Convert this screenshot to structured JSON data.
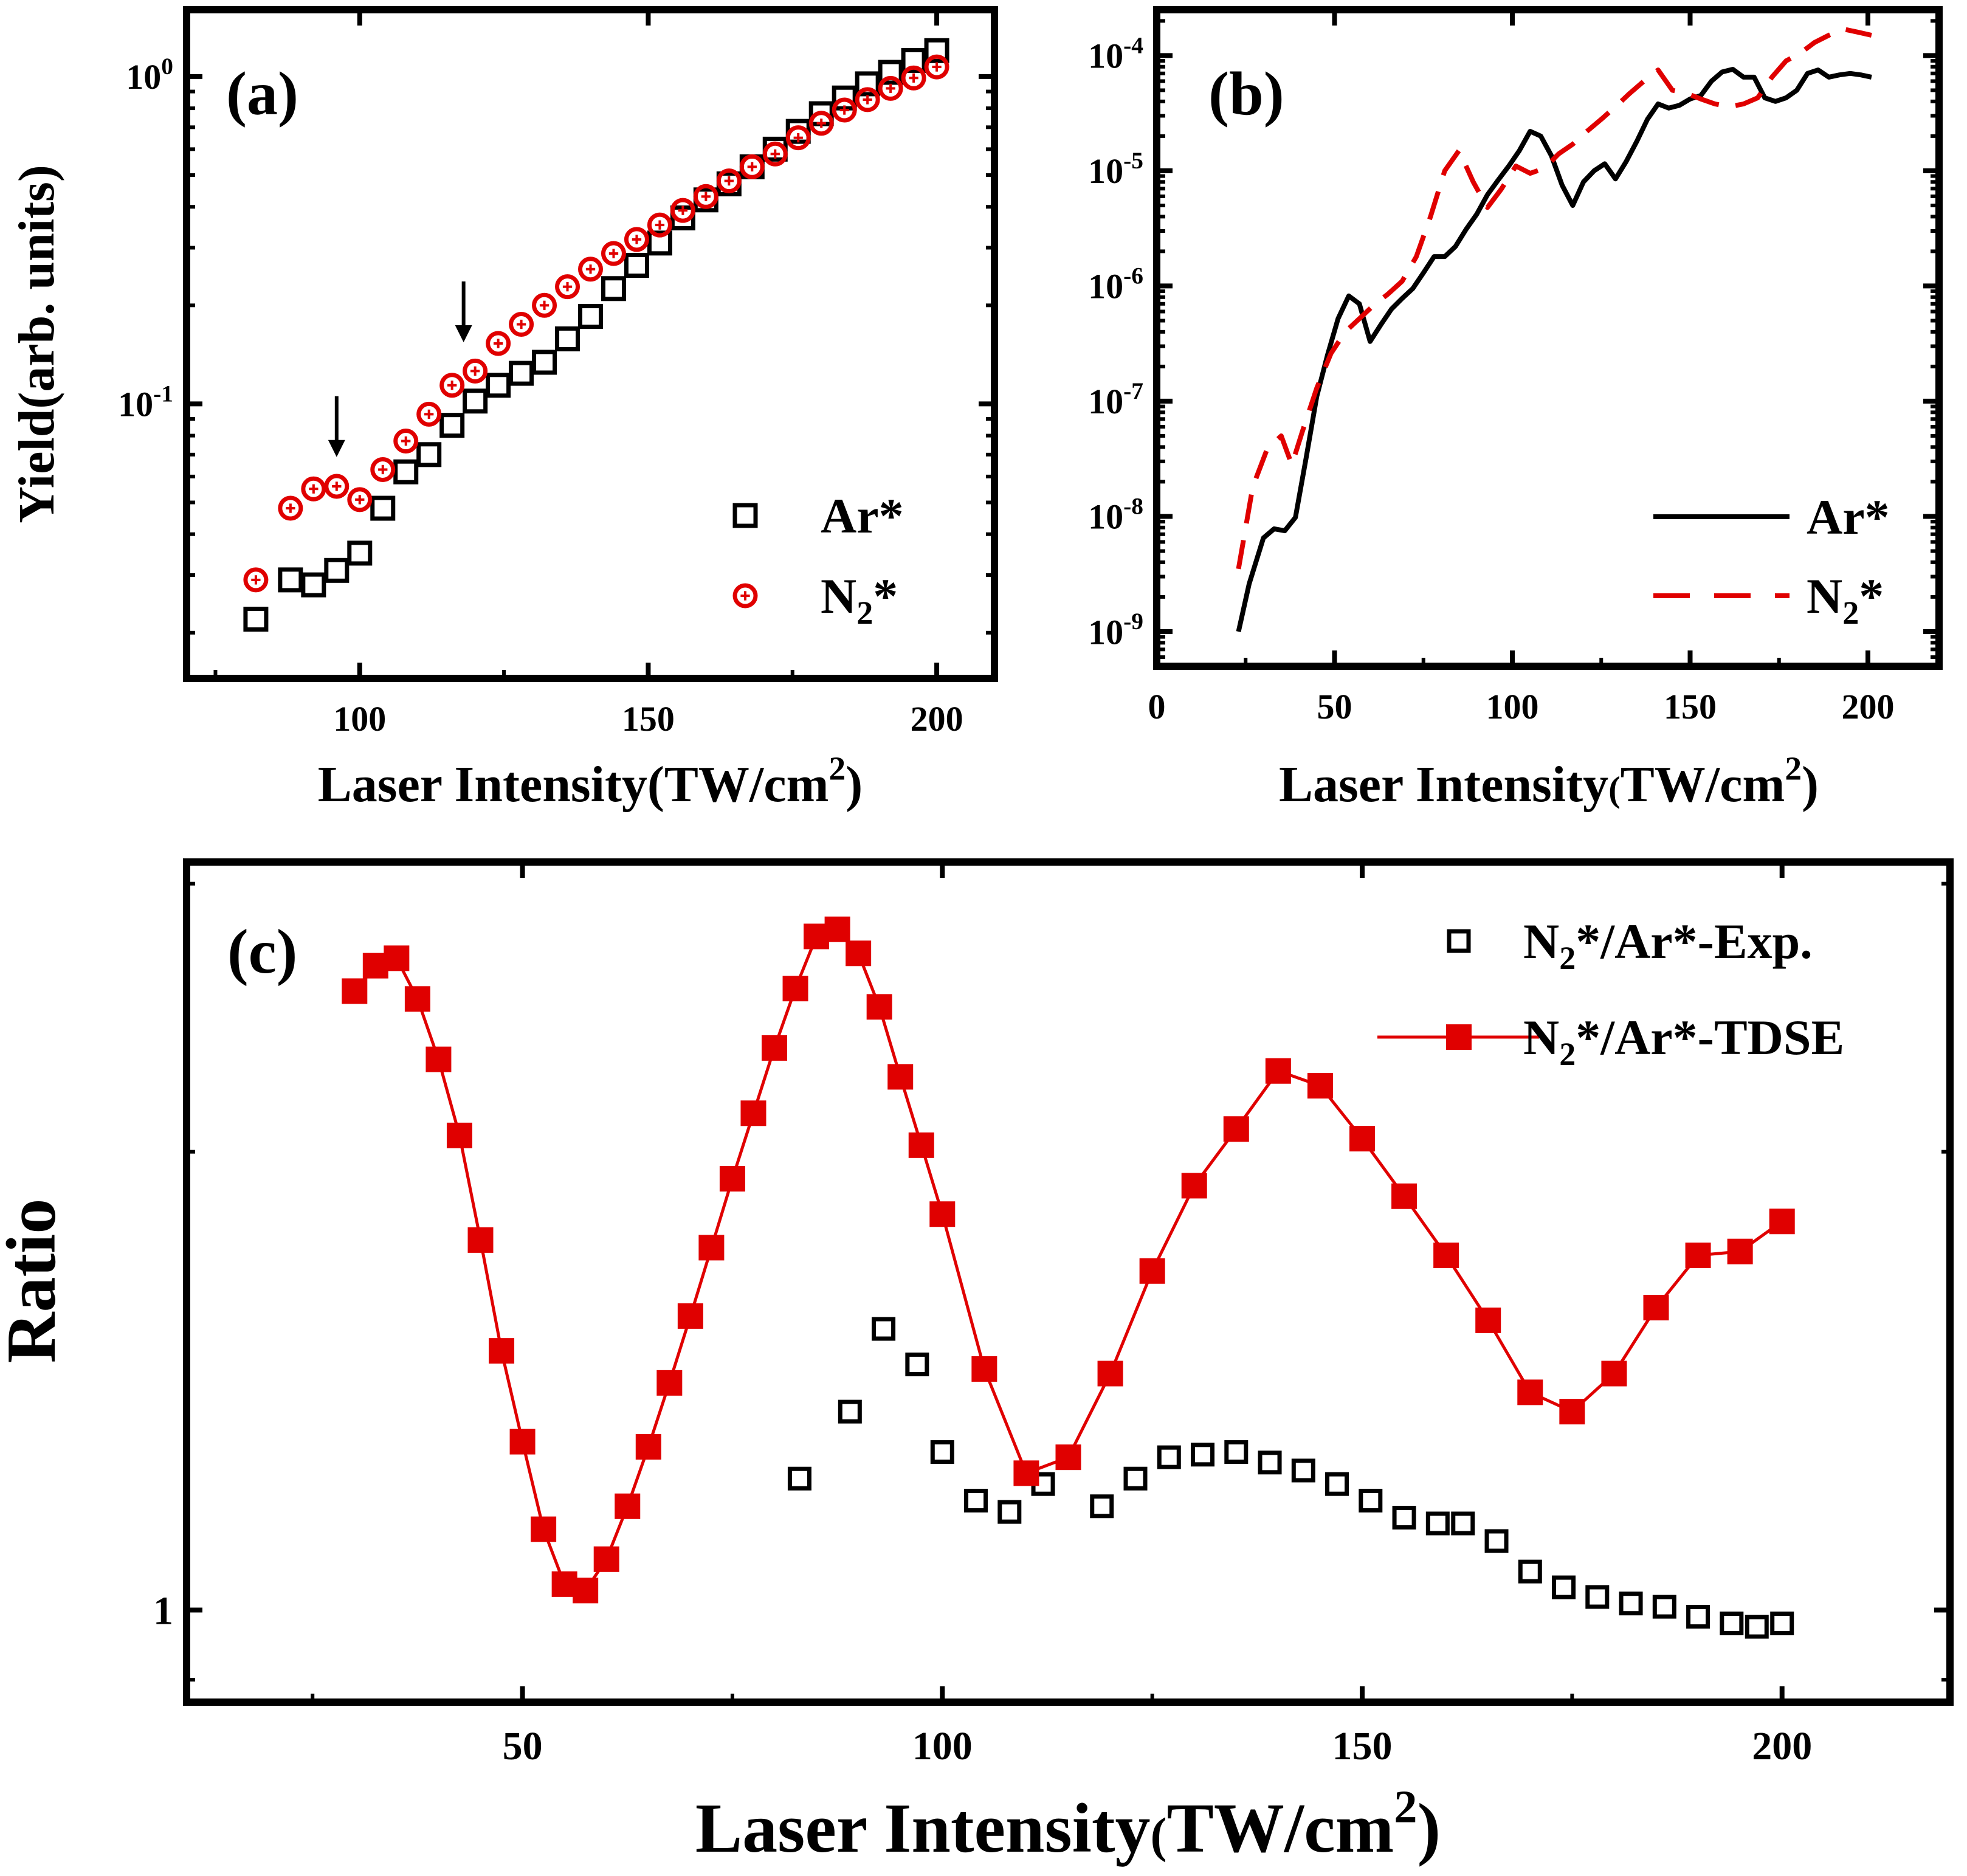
{
  "figure": {
    "background": "#ffffff"
  },
  "colors": {
    "black": "#000000",
    "red": "#e00000"
  },
  "chart_data": [
    {
      "id": "a",
      "panel_label": "(a)",
      "type": "scatter",
      "xlabel": "Laser Intensity(TW/cm",
      "xlabel_sup": "2",
      "xlabel_close": ")",
      "ylabel": "Yield(arb. units)",
      "yscale": "log",
      "xlim": [
        70,
        210
      ],
      "ylim": [
        0.0145,
        1.6
      ],
      "xticks": [
        100,
        150,
        200
      ],
      "yticks": [
        {
          "value": 0.1,
          "base": "10",
          "exp": "-1"
        },
        {
          "value": 1,
          "base": "10",
          "exp": "0"
        }
      ],
      "legend_position": "bottom-right",
      "arrows_at": [
        {
          "x": 96,
          "y": 0.058
        },
        {
          "x": 118,
          "y": 0.13
        }
      ],
      "series": [
        {
          "name": "Ar*",
          "name_base": "Ar*",
          "name_sub": "",
          "name_tail": "",
          "marker": "square-open",
          "color": "#000000",
          "x": [
            82,
            88,
            92,
            96,
            100,
            104,
            108,
            112,
            116,
            120,
            124,
            128,
            132,
            136,
            140,
            144,
            148,
            152,
            156,
            160,
            164,
            168,
            172,
            176,
            180,
            184,
            188,
            192,
            196,
            200
          ],
          "y": [
            0.022,
            0.029,
            0.028,
            0.031,
            0.035,
            0.048,
            0.062,
            0.07,
            0.086,
            0.102,
            0.114,
            0.124,
            0.134,
            0.158,
            0.185,
            0.225,
            0.265,
            0.31,
            0.37,
            0.42,
            0.47,
            0.53,
            0.6,
            0.68,
            0.77,
            0.86,
            0.95,
            1.03,
            1.12,
            1.2
          ]
        },
        {
          "name": "N2*",
          "name_base": "N",
          "name_sub": "2",
          "name_tail": "*",
          "marker": "circle-open",
          "color": "#e00000",
          "x": [
            82,
            88,
            92,
            96,
            100,
            104,
            108,
            112,
            116,
            120,
            124,
            128,
            132,
            136,
            140,
            144,
            148,
            152,
            156,
            160,
            164,
            168,
            172,
            176,
            180,
            184,
            188,
            192,
            196,
            200
          ],
          "y": [
            0.029,
            0.048,
            0.055,
            0.056,
            0.051,
            0.063,
            0.077,
            0.093,
            0.114,
            0.126,
            0.153,
            0.175,
            0.2,
            0.228,
            0.258,
            0.288,
            0.318,
            0.352,
            0.39,
            0.43,
            0.48,
            0.53,
            0.58,
            0.65,
            0.72,
            0.79,
            0.85,
            0.92,
            0.99,
            1.07
          ]
        }
      ]
    },
    {
      "id": "b",
      "panel_label": "(b)",
      "type": "line",
      "xlabel": "Laser Intensity",
      "xlabel_paren": "(",
      "xlabel_unit": "TW/cm",
      "xlabel_sup": "2",
      "xlabel_close": ")",
      "ylabel": "",
      "yscale": "log",
      "xlim": [
        0,
        220
      ],
      "ylim": [
        5e-10,
        0.00025
      ],
      "xticks": [
        0,
        50,
        100,
        150,
        200
      ],
      "yticks": [
        {
          "value": 1e-09,
          "base": "10",
          "exp": "-9"
        },
        {
          "value": 1e-08,
          "base": "10",
          "exp": "-8"
        },
        {
          "value": 1e-07,
          "base": "10",
          "exp": "-7"
        },
        {
          "value": 1e-06,
          "base": "10",
          "exp": "-6"
        },
        {
          "value": 1e-05,
          "base": "10",
          "exp": "-5"
        },
        {
          "value": 0.0001,
          "base": "10",
          "exp": "-4"
        }
      ],
      "legend_position": "bottom-right",
      "series": [
        {
          "name": "Ar*",
          "name_base": "Ar*",
          "name_sub": "",
          "name_tail": "",
          "line_style": "solid",
          "color": "#000000",
          "x": [
            23,
            26,
            30,
            33,
            36,
            39,
            42,
            45,
            48,
            51,
            54,
            57,
            60,
            63,
            66,
            69,
            72,
            75,
            78,
            81,
            84,
            87,
            90,
            93,
            96,
            99,
            102,
            105,
            108,
            111,
            114,
            117,
            120,
            123,
            126,
            129,
            132,
            135,
            138,
            141,
            144,
            147,
            150,
            153,
            156,
            159,
            162,
            165,
            168,
            171,
            174,
            177,
            180,
            183,
            186,
            189,
            192,
            195,
            198,
            201
          ],
          "y": [
            1e-09,
            2.6e-09,
            6.5e-09,
            7.8e-09,
            7.5e-09,
            9.8e-09,
            3.2e-08,
            1.1e-07,
            2.5e-07,
            5.2e-07,
            8.2e-07,
            7e-07,
            3.3e-07,
            4.6e-07,
            6.3e-07,
            7.8e-07,
            9.5e-07,
            1.3e-06,
            1.8e-06,
            1.8e-06,
            2.2e-06,
            3.1e-06,
            4.2e-06,
            6.2e-06,
            8.3e-06,
            1.1e-05,
            1.5e-05,
            2.2e-05,
            2e-05,
            1.35e-05,
            7.5e-06,
            5e-06,
            8e-06,
            1e-05,
            1.15e-05,
            8.5e-06,
            1.2e-05,
            1.8e-05,
            2.8e-05,
            3.8e-05,
            3.5e-05,
            3.7e-05,
            4.2e-05,
            4.5e-05,
            6e-05,
            7.2e-05,
            7.6e-05,
            6.5e-05,
            6.5e-05,
            4.3e-05,
            4e-05,
            4.3e-05,
            5e-05,
            7e-05,
            7.5e-05,
            6.5e-05,
            6.8e-05,
            7e-05,
            6.8e-05,
            6.5e-05
          ]
        },
        {
          "name": "N2*",
          "name_base": "N",
          "name_sub": "2",
          "name_tail": "*",
          "line_style": "dashed",
          "color": "#e00000",
          "x": [
            23,
            27,
            31,
            35,
            38,
            41,
            45,
            49,
            53,
            57,
            61,
            65,
            69,
            73,
            77,
            81,
            85,
            89,
            93,
            97,
            101,
            105,
            109,
            113,
            117,
            121,
            125,
            129,
            133,
            137,
            141,
            145,
            149,
            153,
            157,
            161,
            165,
            169,
            173,
            177,
            181,
            185,
            189,
            193,
            197,
            201
          ],
          "y": [
            3.5e-09,
            1.8e-08,
            3.8e-08,
            5e-08,
            2.8e-08,
            5.5e-08,
            1.3e-07,
            2.6e-07,
            4e-07,
            5.2e-07,
            6.8e-07,
            8.5e-07,
            1.1e-06,
            1.8e-06,
            4e-06,
            1e-05,
            1.5e-05,
            8e-06,
            4.8e-06,
            7e-06,
            1.1e-05,
            9.5e-06,
            1.05e-05,
            1.4e-05,
            1.7e-05,
            2.2e-05,
            2.8e-05,
            3.6e-05,
            4.7e-05,
            6e-05,
            7.5e-05,
            5e-05,
            4.7e-05,
            4.2e-05,
            3.8e-05,
            3.6e-05,
            3.8e-05,
            4.3e-05,
            6.5e-05,
            9e-05,
            0.000105,
            0.00013,
            0.00015,
            0.00017,
            0.00016,
            0.00015
          ]
        }
      ]
    },
    {
      "id": "c",
      "panel_label": "(c)",
      "type": "scatter+line",
      "xlabel": "Laser Intensity",
      "xlabel_paren": "(",
      "xlabel_unit": "TW/cm",
      "xlabel_sup": "2",
      "xlabel_close": ")",
      "ylabel": "Ratio",
      "yscale": "log",
      "xlim": [
        10,
        220
      ],
      "ylim": [
        0.87,
        3.1
      ],
      "xticks": [
        50,
        100,
        150,
        200
      ],
      "yticks": [
        {
          "value": 1,
          "label": "1"
        }
      ],
      "legend_position": "top-right",
      "series": [
        {
          "name": "N2*/Ar*-Exp.",
          "name_base": "N",
          "name_sub": "2",
          "name_tail": "*/Ar*-Exp.",
          "marker": "square-open",
          "line": false,
          "color": "#000000",
          "x": [
            83,
            89,
            93,
            97,
            100,
            104,
            108,
            112,
            119,
            123,
            127,
            131,
            135,
            139,
            143,
            147,
            151,
            155,
            159,
            162,
            166,
            170,
            174,
            178,
            182,
            186,
            190,
            194,
            197,
            200
          ],
          "y": [
            1.22,
            1.35,
            1.53,
            1.45,
            1.27,
            1.18,
            1.16,
            1.21,
            1.17,
            1.22,
            1.26,
            1.265,
            1.27,
            1.25,
            1.235,
            1.21,
            1.18,
            1.15,
            1.14,
            1.14,
            1.11,
            1.06,
            1.035,
            1.02,
            1.01,
            1.005,
            0.99,
            0.98,
            0.975,
            0.98
          ]
        },
        {
          "name": "N2*/Ar*-TDSE",
          "name_base": "N",
          "name_sub": "2",
          "name_tail": "*/Ar*-TDSE",
          "marker": "square-filled",
          "line": true,
          "color": "#e00000",
          "x": [
            30,
            32.5,
            35,
            37.5,
            40,
            42.5,
            45,
            47.5,
            50,
            52.5,
            55,
            57.5,
            60,
            62.5,
            65,
            67.5,
            70,
            72.5,
            75,
            77.5,
            80,
            82.5,
            85,
            87.5,
            90,
            92.5,
            95,
            97.5,
            100,
            105,
            110,
            115,
            120,
            125,
            130,
            135,
            140,
            145,
            150,
            155,
            160,
            165,
            170,
            175,
            180,
            185,
            190,
            195,
            200
          ],
          "y": [
            2.55,
            2.65,
            2.68,
            2.52,
            2.3,
            2.05,
            1.75,
            1.48,
            1.29,
            1.13,
            1.04,
            1.03,
            1.08,
            1.17,
            1.28,
            1.41,
            1.56,
            1.73,
            1.92,
            2.12,
            2.34,
            2.56,
            2.77,
            2.8,
            2.7,
            2.49,
            2.24,
            2.02,
            1.82,
            1.44,
            1.23,
            1.26,
            1.43,
            1.67,
            1.9,
            2.07,
            2.26,
            2.21,
            2.04,
            1.87,
            1.71,
            1.55,
            1.39,
            1.35,
            1.43,
            1.58,
            1.71,
            1.72,
            1.8
          ]
        }
      ]
    }
  ]
}
